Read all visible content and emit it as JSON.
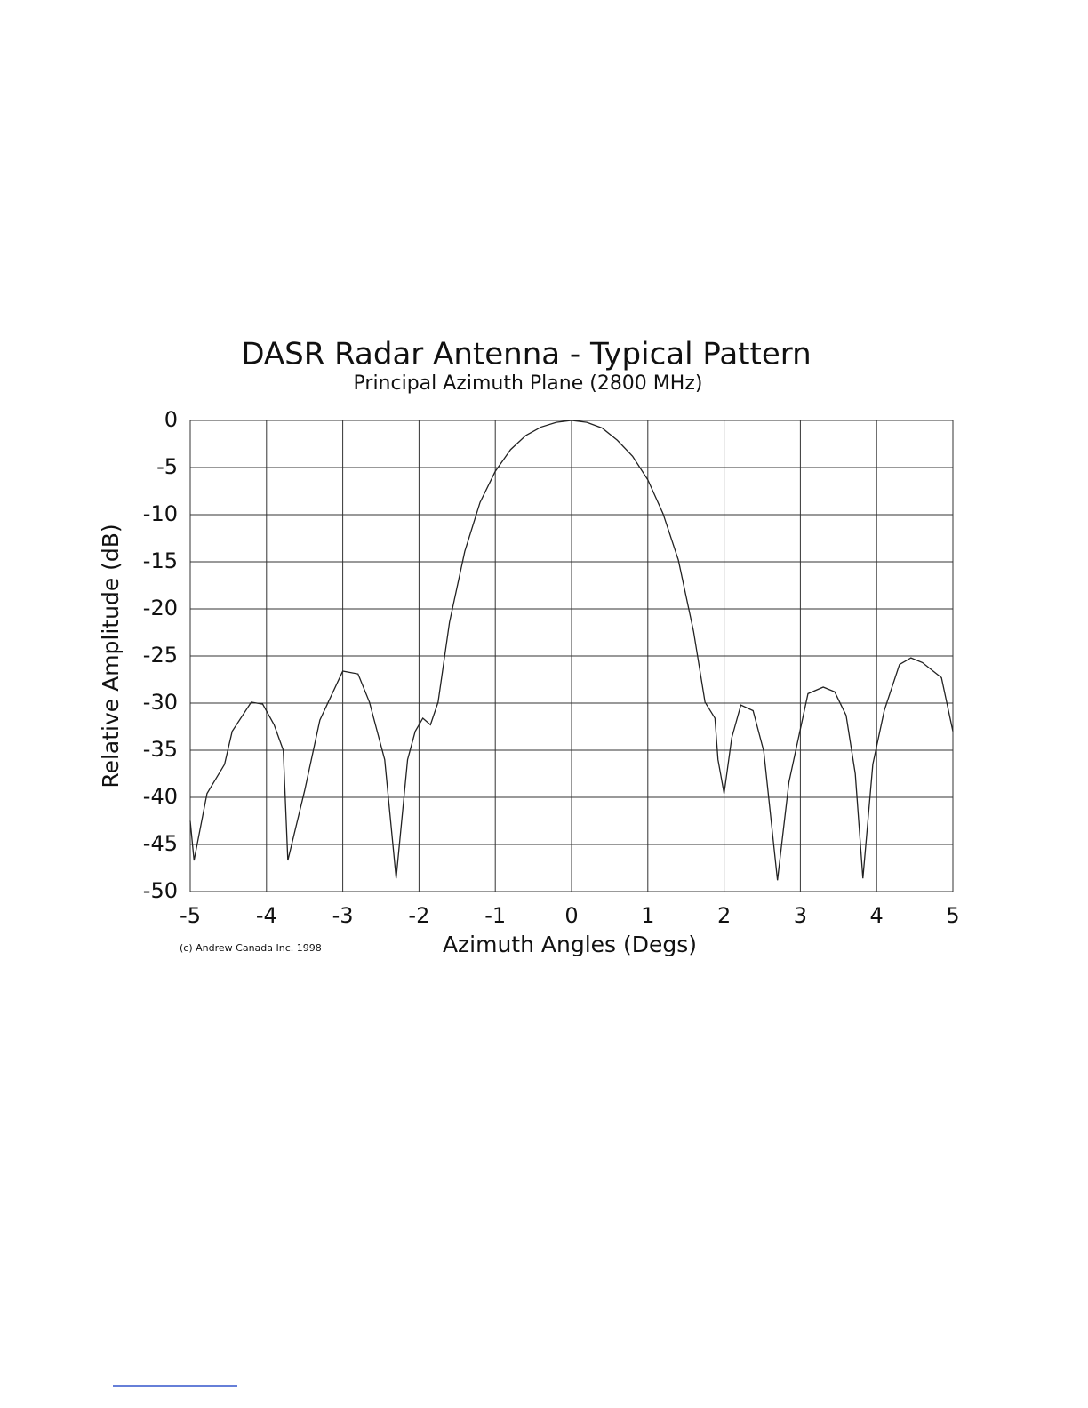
{
  "chart_data": {
    "type": "line",
    "title": "DASR Radar Antenna - Typical Pattern",
    "subtitle": "Principal Azimuth Plane (2800 MHz)",
    "x_label": "Azimuth Angles (Degs)",
    "y_label": "Relative Amplitude (dB)",
    "annotation": "(c) Andrew Canada Inc. 1998",
    "x": [
      -5,
      -4.95,
      -4.78,
      -4.55,
      -4.45,
      -4.2,
      -4.05,
      -3.9,
      -3.78,
      -3.72,
      -3.5,
      -3.3,
      -3.0,
      -2.8,
      -2.65,
      -2.45,
      -2.3,
      -2.15,
      -2.05,
      -1.95,
      -1.85,
      -1.75,
      -1.6,
      -1.4,
      -1.2,
      -1.0,
      -0.8,
      -0.6,
      -0.4,
      -0.2,
      0,
      0.2,
      0.4,
      0.6,
      0.8,
      1.0,
      1.2,
      1.4,
      1.6,
      1.75,
      1.88,
      1.92,
      2.0,
      2.1,
      2.22,
      2.38,
      2.52,
      2.7,
      2.85,
      3.1,
      3.3,
      3.45,
      3.6,
      3.72,
      3.82,
      3.95,
      4.1,
      4.3,
      4.45,
      4.6,
      4.85,
      5.0
    ],
    "values": [
      -42.5,
      -46.7,
      -39.6,
      -36.5,
      -33,
      -29.9,
      -30.1,
      -32.3,
      -35,
      -46.7,
      -39.3,
      -31.8,
      -26.6,
      -26.9,
      -29.9,
      -36,
      -48.6,
      -36,
      -33,
      -31.6,
      -32.3,
      -29.9,
      -21.4,
      -13.9,
      -8.7,
      -5.4,
      -3.1,
      -1.6,
      -0.7,
      -0.2,
      0,
      -0.2,
      -0.8,
      -2.1,
      -3.8,
      -6.3,
      -9.9,
      -14.8,
      -22.4,
      -29.9,
      -31.6,
      -36,
      -39.6,
      -33.7,
      -30.2,
      -30.8,
      -35.1,
      -48.8,
      -38.4,
      -29,
      -28.3,
      -28.8,
      -31.3,
      -37.5,
      -48.6,
      -36.5,
      -30.8,
      -25.9,
      -25.2,
      -25.7,
      -27.3,
      -33
    ],
    "color": "#222222",
    "xlim": [
      -5,
      5
    ],
    "xticks": [
      -5,
      -4,
      -3,
      -2,
      -1,
      0,
      1,
      2,
      3,
      4,
      5
    ],
    "ylim": [
      -50,
      0
    ],
    "yticks": [
      0,
      -5,
      -10,
      -15,
      -20,
      -25,
      -30,
      -35,
      -40,
      -45,
      -50
    ],
    "grid": true
  }
}
